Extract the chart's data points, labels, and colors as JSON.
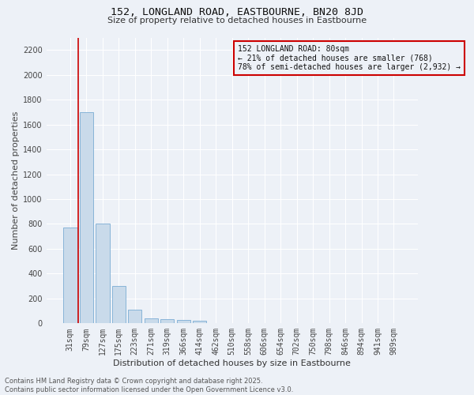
{
  "title": "152, LONGLAND ROAD, EASTBOURNE, BN20 8JD",
  "subtitle": "Size of property relative to detached houses in Eastbourne",
  "xlabel": "Distribution of detached houses by size in Eastbourne",
  "ylabel": "Number of detached properties",
  "categories": [
    "31sqm",
    "79sqm",
    "127sqm",
    "175sqm",
    "223sqm",
    "271sqm",
    "319sqm",
    "366sqm",
    "414sqm",
    "462sqm",
    "510sqm",
    "558sqm",
    "606sqm",
    "654sqm",
    "702sqm",
    "750sqm",
    "798sqm",
    "846sqm",
    "894sqm",
    "941sqm",
    "989sqm"
  ],
  "values": [
    770,
    1700,
    800,
    300,
    110,
    40,
    35,
    30,
    20,
    0,
    0,
    0,
    0,
    0,
    0,
    0,
    0,
    0,
    0,
    0,
    0
  ],
  "bar_color": "#c9daea",
  "bar_edge_color": "#7bacd4",
  "background_color": "#edf1f7",
  "grid_color": "#ffffff",
  "annotation_line1": "152 LONGLAND ROAD: 80sqm",
  "annotation_line2": "← 21% of detached houses are smaller (768)",
  "annotation_line3": "78% of semi-detached houses are larger (2,932) →",
  "annotation_box_color": "#cc0000",
  "vline_x": 0.5,
  "ylim": [
    0,
    2300
  ],
  "yticks": [
    0,
    200,
    400,
    600,
    800,
    1000,
    1200,
    1400,
    1600,
    1800,
    2000,
    2200
  ],
  "footer_line1": "Contains HM Land Registry data © Crown copyright and database right 2025.",
  "footer_line2": "Contains public sector information licensed under the Open Government Licence v3.0.",
  "title_fontsize": 9.5,
  "subtitle_fontsize": 8,
  "ylabel_fontsize": 8,
  "xlabel_fontsize": 8,
  "tick_fontsize": 7,
  "annot_fontsize": 7,
  "footer_fontsize": 6
}
